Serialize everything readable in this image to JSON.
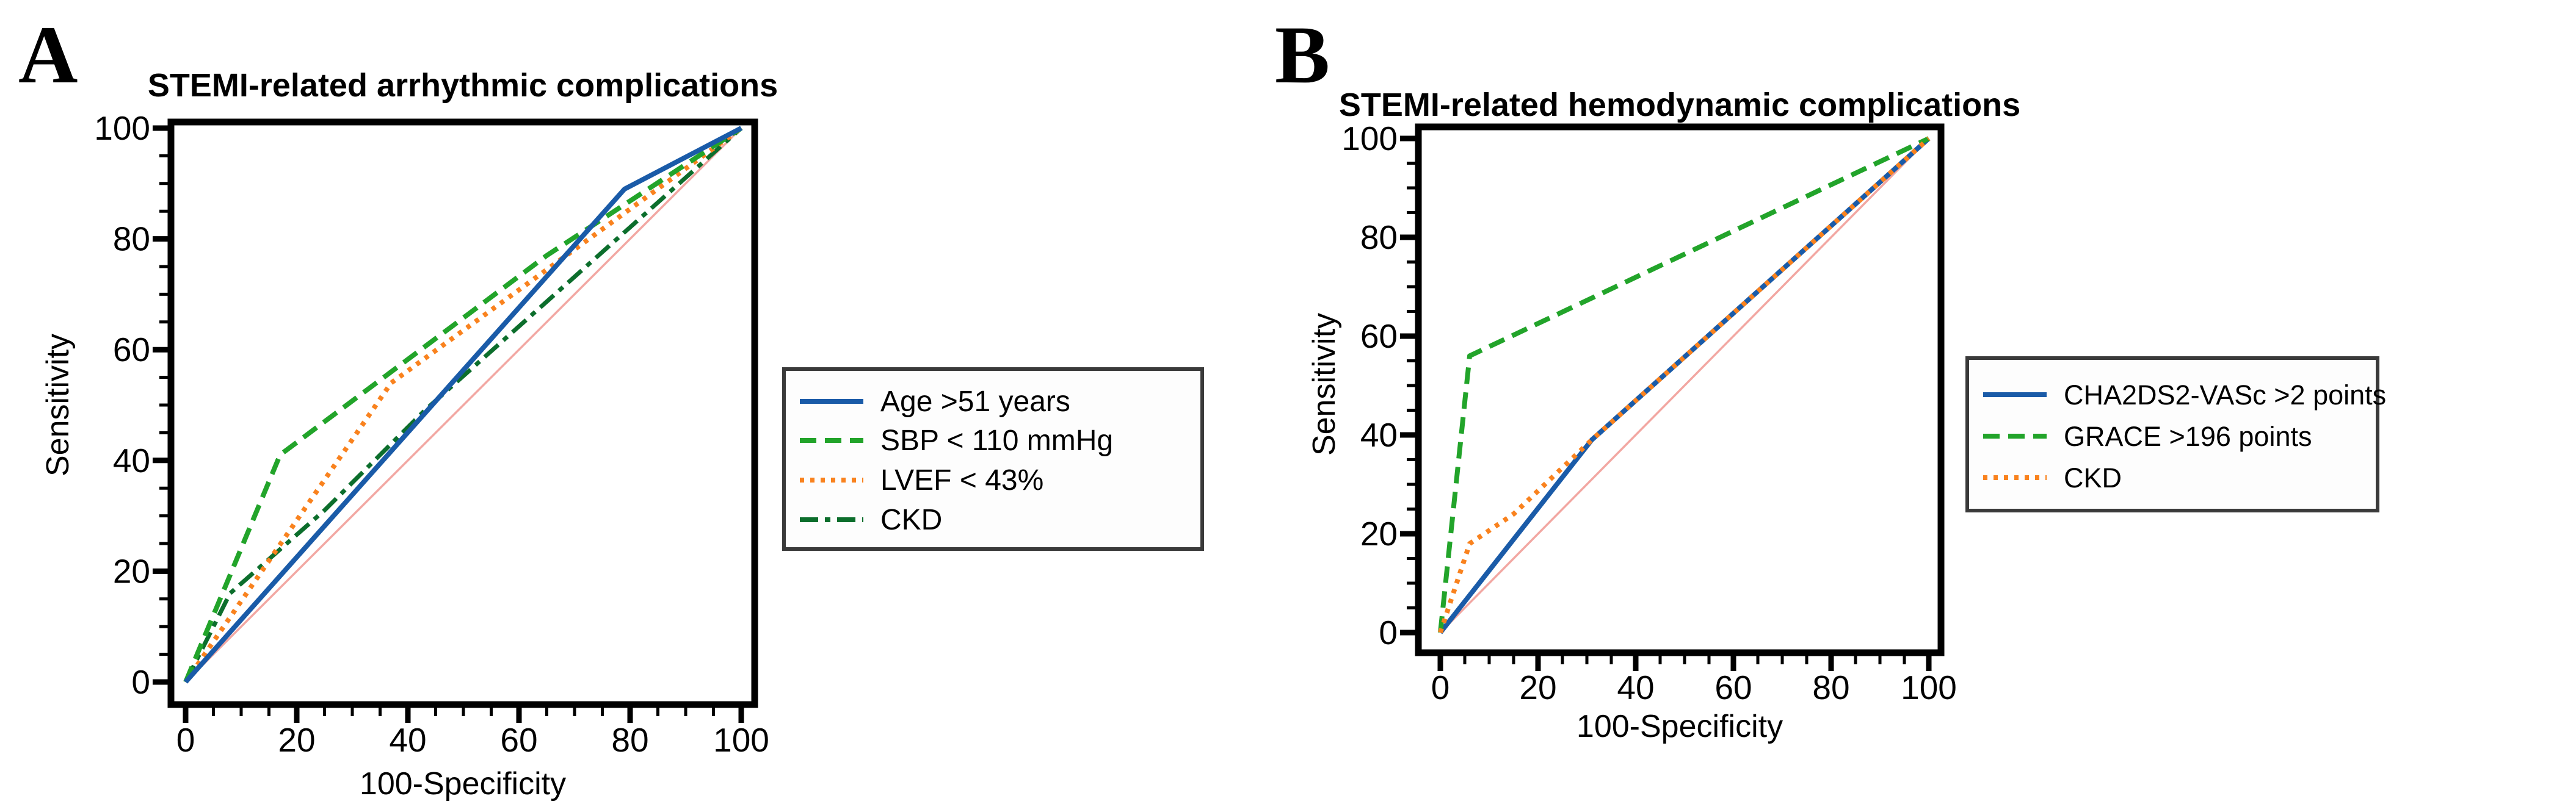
{
  "panels": [
    {
      "letter": "A",
      "title": "STEMI-related arrhythmic complications",
      "xlabel": "100-Specificity",
      "ylabel": "Sensitivity"
    },
    {
      "letter": "B",
      "title": "STEMI-related hemodynamic complications",
      "xlabel": "100-Specificity",
      "ylabel": "Sensitivity"
    }
  ],
  "colors": {
    "curve_blue": "#1a5ba8",
    "curve_green": "#22a42a",
    "curve_orange": "#f9821e",
    "curve_dark_green": "#0c6e2c",
    "reference_pink": "#f2a7a2",
    "frame_black": "#000000",
    "legend_border": "#3a3a3a"
  },
  "chart_data": [
    {
      "type": "line",
      "subtype": "roc-curve",
      "title": "STEMI-related arrhythmic complications",
      "xlabel": "100-Specificity",
      "ylabel": "Sensitivity",
      "xlim": [
        0,
        100
      ],
      "ylim": [
        0,
        100
      ],
      "x_major_ticks": [
        0,
        20,
        40,
        60,
        80,
        100
      ],
      "y_major_ticks": [
        0,
        20,
        40,
        60,
        80,
        100
      ],
      "minor_tick_step": 5,
      "grid": false,
      "legend_position": "right-outside",
      "series": [
        {
          "name": "Age >51 years",
          "color": "#1a5ba8",
          "style": "solid",
          "width": 8,
          "z": 4,
          "points": [
            [
              0,
              0
            ],
            [
              79,
              89
            ],
            [
              100,
              100
            ]
          ]
        },
        {
          "name": "SBP < 110 mmHg",
          "color": "#22a42a",
          "style": "dashed",
          "width": 8,
          "z": 3,
          "points": [
            [
              0,
              0
            ],
            [
              17,
              41
            ],
            [
              65,
              77
            ],
            [
              100,
              100
            ]
          ]
        },
        {
          "name": "LVEF < 43%",
          "color": "#f9821e",
          "style": "dotted",
          "width": 8,
          "z": 2,
          "points": [
            [
              0,
              0
            ],
            [
              37,
              54
            ],
            [
              100,
              100
            ]
          ]
        },
        {
          "name": "CKD",
          "color": "#0c6e2c",
          "style": "dashdot",
          "width": 7,
          "z": 1,
          "points": [
            [
              0,
              0
            ],
            [
              8,
              16
            ],
            [
              25,
              31
            ],
            [
              43,
              49
            ],
            [
              100,
              100
            ]
          ]
        }
      ],
      "reference": {
        "name": "chance diagonal",
        "color": "#f2a7a2",
        "width": 3.5,
        "points": [
          [
            0,
            0
          ],
          [
            100,
            100
          ]
        ]
      }
    },
    {
      "type": "line",
      "subtype": "roc-curve",
      "title": "STEMI-related hemodynamic complications",
      "xlabel": "100-Specificity",
      "ylabel": "Sensitivity",
      "xlim": [
        0,
        100
      ],
      "ylim": [
        0,
        100
      ],
      "x_major_ticks": [
        0,
        20,
        40,
        60,
        80,
        100
      ],
      "y_major_ticks": [
        0,
        20,
        40,
        60,
        80,
        100
      ],
      "minor_tick_step": 5,
      "grid": false,
      "legend_position": "right-outside",
      "series": [
        {
          "name": "CHA2DS2-VASc >2 points",
          "color": "#1a5ba8",
          "style": "solid",
          "width": 8,
          "z": 1,
          "points": [
            [
              0,
              0
            ],
            [
              31,
              39
            ],
            [
              100,
              100
            ]
          ]
        },
        {
          "name": "GRACE >196 points",
          "color": "#22a42a",
          "style": "dashed",
          "width": 8,
          "z": 2,
          "points": [
            [
              0,
              0
            ],
            [
              6,
              56
            ],
            [
              100,
              100
            ]
          ]
        },
        {
          "name": "CKD",
          "color": "#f9821e",
          "style": "dotted",
          "width": 8,
          "z": 3,
          "points": [
            [
              0,
              0
            ],
            [
              6,
              18
            ],
            [
              15,
              24
            ],
            [
              31,
              39
            ],
            [
              100,
              100
            ]
          ]
        }
      ],
      "reference": {
        "name": "chance diagonal",
        "color": "#f2a7a2",
        "width": 3.5,
        "points": [
          [
            0,
            0
          ],
          [
            100,
            100
          ]
        ]
      }
    }
  ]
}
